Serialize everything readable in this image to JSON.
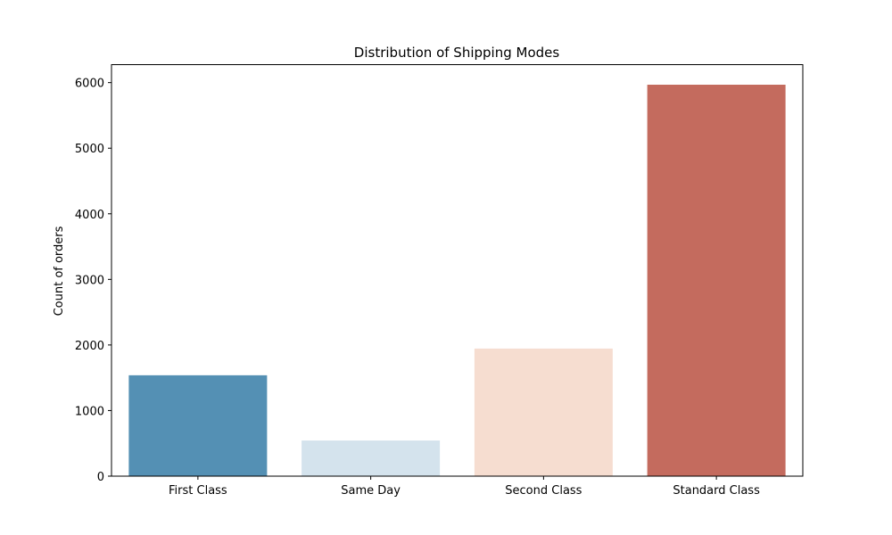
{
  "chart_data": {
    "type": "bar",
    "title": "Distribution of Shipping Modes",
    "xlabel": "",
    "ylabel": "Count of orders",
    "categories": [
      "First Class",
      "Same Day",
      "Second Class",
      "Standard Class"
    ],
    "values": [
      1538,
      543,
      1945,
      5968
    ],
    "colors": [
      "#5490b4",
      "#d4e3ed",
      "#f6ddd0",
      "#c46b5e"
    ],
    "ylim": [
      0,
      6274
    ],
    "yticks": [
      0,
      1000,
      2000,
      3000,
      4000,
      5000,
      6000
    ],
    "ytick_labels": [
      "0",
      "1000",
      "2000",
      "3000",
      "4000",
      "5000",
      "6000"
    ],
    "grid": false,
    "legend": false
  }
}
